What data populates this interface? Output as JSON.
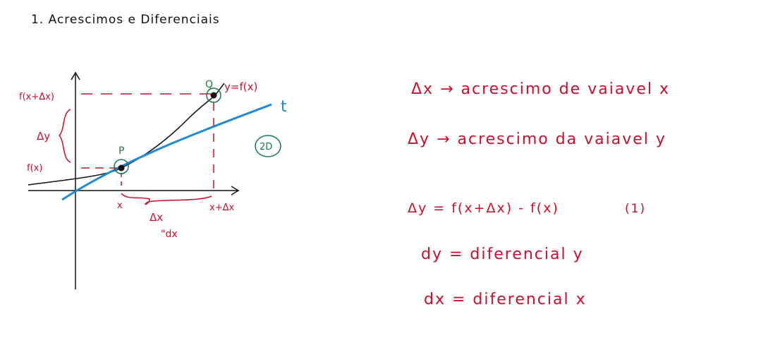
{
  "title": "1. Acrescimos e Diferenciais",
  "graph": {
    "y_top_label": "f(x+Δx)",
    "dy_label": "Δy",
    "y_low_label": "f(x)",
    "point_p": "P",
    "point_q": "Q",
    "curve_label": "y=f(x)",
    "tangent_label": "t",
    "circled_label": "2D",
    "x_label": "x",
    "x2_label": "x+Δx",
    "dx_label": "Δx",
    "dx_alt_label": "\"dx"
  },
  "notes": {
    "line1": "Δx → acrescimo de vaiavel x",
    "line2": "Δy → acrescimo da vaiavel y",
    "line3": "Δy = f(x+Δx) - f(x)",
    "line3_tag": "(1)",
    "line4": "dy = diferencial y",
    "line5": "dx = diferencial x"
  },
  "colors": {
    "ink": "#111111",
    "red": "#c8102e",
    "blue": "#1f8ad6",
    "green": "#1a7a4c"
  }
}
